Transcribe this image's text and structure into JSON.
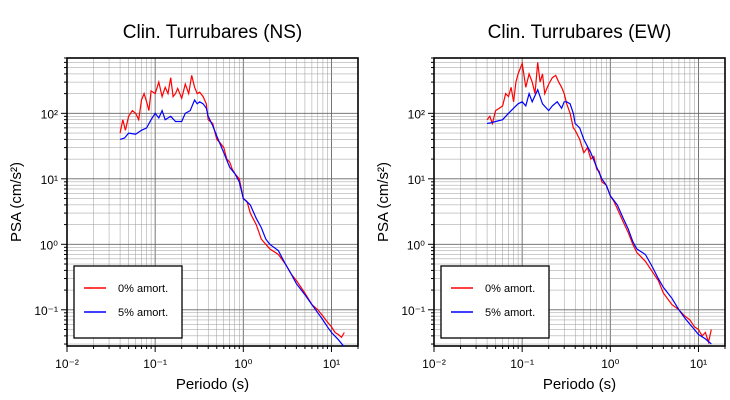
{
  "chart_data": [
    {
      "type": "line",
      "title": "Clin. Turrubares (NS)",
      "xlabel": "Periodo (s)",
      "ylabel": "PSA (cm/s²)",
      "xscale": "log",
      "yscale": "log",
      "xlim": [
        0.01,
        20
      ],
      "ylim": [
        0.028,
        700
      ],
      "grid": true,
      "legend_placement": "bottom-left",
      "xticks": [
        "10⁻²",
        "10⁻¹",
        "10⁰",
        "10¹"
      ],
      "yticks": [
        "10⁻¹",
        "10⁰",
        "10¹",
        "10²"
      ],
      "series": [
        {
          "name": "0% amort.",
          "color": "#ff0000",
          "x": [
            0.04,
            0.043,
            0.046,
            0.05,
            0.055,
            0.06,
            0.065,
            0.07,
            0.075,
            0.08,
            0.085,
            0.09,
            0.1,
            0.11,
            0.12,
            0.13,
            0.14,
            0.15,
            0.16,
            0.17,
            0.18,
            0.2,
            0.22,
            0.24,
            0.26,
            0.28,
            0.3,
            0.32,
            0.35,
            0.38,
            0.4,
            0.45,
            0.5,
            0.55,
            0.6,
            0.65,
            0.7,
            0.75,
            0.8,
            0.9,
            1.0,
            1.1,
            1.2,
            1.4,
            1.6,
            1.8,
            2.0,
            2.5,
            3.0,
            3.5,
            4.0,
            5.0,
            6.0,
            7.0,
            8.0,
            9.0,
            10.0,
            11.0,
            12.0,
            13.0,
            14.0
          ],
          "y": [
            50,
            80,
            55,
            90,
            110,
            100,
            80,
            160,
            200,
            150,
            110,
            220,
            200,
            300,
            180,
            250,
            200,
            350,
            180,
            200,
            240,
            170,
            280,
            200,
            380,
            250,
            200,
            210,
            180,
            140,
            80,
            70,
            40,
            35,
            30,
            20,
            18,
            14,
            12,
            10,
            5,
            4.5,
            3.0,
            2.0,
            1.2,
            1.0,
            0.85,
            0.7,
            0.5,
            0.35,
            0.28,
            0.18,
            0.12,
            0.1,
            0.08,
            0.065,
            0.055,
            0.045,
            0.042,
            0.038,
            0.045
          ]
        },
        {
          "name": "5% amort.",
          "color": "#0000ff",
          "x": [
            0.04,
            0.045,
            0.05,
            0.06,
            0.07,
            0.08,
            0.09,
            0.1,
            0.11,
            0.12,
            0.13,
            0.15,
            0.17,
            0.2,
            0.22,
            0.25,
            0.28,
            0.3,
            0.32,
            0.35,
            0.38,
            0.4,
            0.45,
            0.5,
            0.6,
            0.7,
            0.8,
            0.9,
            1.0,
            1.2,
            1.4,
            1.6,
            1.8,
            2.0,
            2.5,
            3.0,
            3.5,
            4.0,
            5.0,
            6.0,
            7.0,
            8.0,
            9.0,
            10.0,
            12.0,
            14.0
          ],
          "y": [
            40,
            42,
            50,
            48,
            55,
            60,
            80,
            100,
            85,
            110,
            80,
            90,
            75,
            75,
            100,
            110,
            160,
            140,
            150,
            140,
            120,
            90,
            65,
            45,
            25,
            15,
            12,
            9,
            5,
            4,
            2.5,
            1.8,
            1.2,
            1.0,
            0.8,
            0.5,
            0.35,
            0.25,
            0.17,
            0.12,
            0.09,
            0.07,
            0.055,
            0.045,
            0.035,
            0.027
          ]
        }
      ]
    },
    {
      "type": "line",
      "title": "Clin. Turrubares (EW)",
      "xlabel": "Periodo (s)",
      "ylabel": "PSA (cm/s²)",
      "xscale": "log",
      "yscale": "log",
      "xlim": [
        0.01,
        20
      ],
      "ylim": [
        0.028,
        700
      ],
      "grid": true,
      "legend_placement": "bottom-left",
      "xticks": [
        "10⁻²",
        "10⁻¹",
        "10⁰",
        "10¹"
      ],
      "yticks": [
        "10⁻¹",
        "10⁰",
        "10¹",
        "10²"
      ],
      "series": [
        {
          "name": "0% amort.",
          "color": "#ff0000",
          "x": [
            0.04,
            0.043,
            0.046,
            0.05,
            0.055,
            0.06,
            0.065,
            0.07,
            0.075,
            0.08,
            0.085,
            0.09,
            0.1,
            0.11,
            0.12,
            0.13,
            0.14,
            0.15,
            0.16,
            0.17,
            0.18,
            0.2,
            0.22,
            0.24,
            0.26,
            0.28,
            0.3,
            0.32,
            0.35,
            0.38,
            0.4,
            0.45,
            0.5,
            0.55,
            0.6,
            0.65,
            0.7,
            0.75,
            0.8,
            0.9,
            1.0,
            1.1,
            1.2,
            1.4,
            1.6,
            1.8,
            2.0,
            2.5,
            3.0,
            3.5,
            4.0,
            5.0,
            6.0,
            7.0,
            8.0,
            9.0,
            10.0,
            11.0,
            12.0,
            13.0,
            14.0
          ],
          "y": [
            80,
            90,
            70,
            110,
            120,
            130,
            200,
            180,
            250,
            150,
            300,
            400,
            580,
            250,
            400,
            300,
            200,
            600,
            300,
            400,
            200,
            280,
            350,
            380,
            300,
            250,
            200,
            140,
            100,
            60,
            55,
            40,
            25,
            30,
            20,
            22,
            14,
            13,
            9,
            8,
            5.5,
            4.5,
            3.5,
            2.2,
            1.5,
            1.0,
            0.75,
            0.55,
            0.38,
            0.28,
            0.18,
            0.12,
            0.1,
            0.08,
            0.07,
            0.055,
            0.05,
            0.04,
            0.045,
            0.032,
            0.05
          ]
        },
        {
          "name": "5% amort.",
          "color": "#0000ff",
          "x": [
            0.04,
            0.045,
            0.05,
            0.06,
            0.07,
            0.08,
            0.09,
            0.1,
            0.11,
            0.12,
            0.13,
            0.15,
            0.17,
            0.2,
            0.22,
            0.25,
            0.28,
            0.3,
            0.32,
            0.35,
            0.38,
            0.4,
            0.45,
            0.5,
            0.6,
            0.7,
            0.8,
            0.9,
            1.0,
            1.2,
            1.4,
            1.6,
            1.8,
            2.0,
            2.5,
            3.0,
            3.5,
            4.0,
            5.0,
            6.0,
            7.0,
            8.0,
            9.0,
            10.0,
            12.0,
            14.0
          ],
          "y": [
            70,
            72,
            75,
            80,
            100,
            120,
            140,
            150,
            130,
            200,
            150,
            230,
            140,
            110,
            130,
            150,
            120,
            150,
            150,
            140,
            100,
            70,
            60,
            40,
            25,
            15,
            10,
            8,
            5.5,
            4,
            2.5,
            1.7,
            1.1,
            0.85,
            0.7,
            0.45,
            0.3,
            0.22,
            0.15,
            0.1,
            0.075,
            0.06,
            0.05,
            0.042,
            0.036,
            0.03
          ]
        }
      ]
    }
  ]
}
